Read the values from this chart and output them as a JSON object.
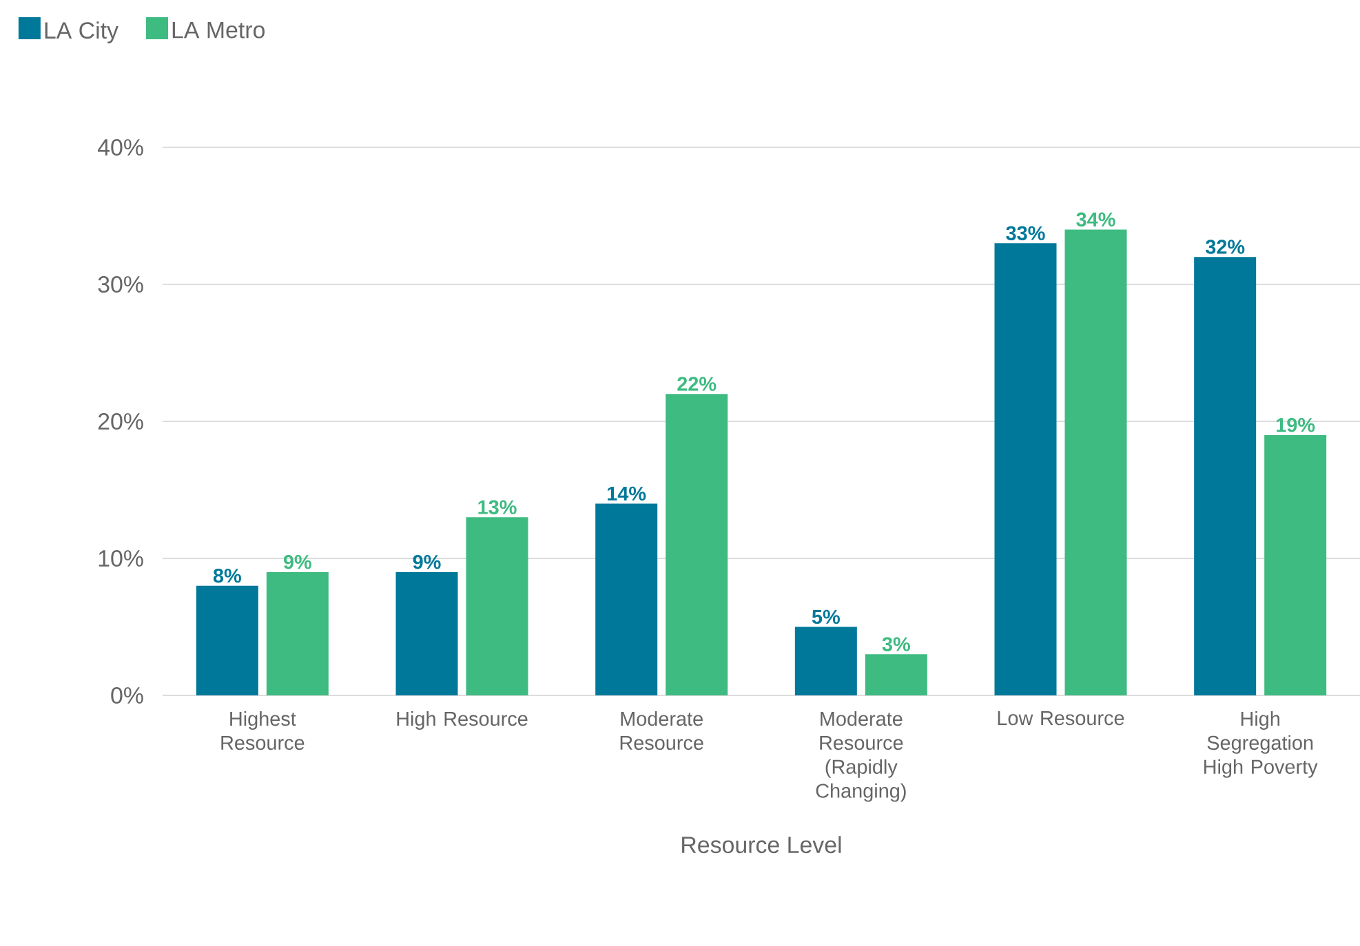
{
  "chart_data": {
    "type": "bar",
    "xlabel": "Resource Level",
    "categories": [
      "Highest Resource",
      "High Resource",
      "Moderate Resource",
      "Moderate Resource (Rapidly Changing)",
      "Low Resource",
      "High Segregation High Poverty"
    ],
    "series": [
      {
        "name": "LA City",
        "color": "#00789a",
        "values": [
          8,
          9,
          14,
          5,
          33,
          32
        ],
        "value_labels": [
          "8%",
          "9%",
          "14%",
          "5%",
          "33%",
          "32%"
        ]
      },
      {
        "name": "LA Metro",
        "color": "#3dbb81",
        "values": [
          9,
          13,
          22,
          3,
          34,
          19
        ],
        "value_labels": [
          "9%",
          "13%",
          "22%",
          "3%",
          "34%",
          "19%"
        ]
      }
    ],
    "ylim": [
      0,
      40
    ],
    "yticks": [
      {
        "value": 0,
        "label": "0%"
      },
      {
        "value": 10,
        "label": "10%"
      },
      {
        "value": 20,
        "label": "20%"
      },
      {
        "value": 30,
        "label": "30%"
      },
      {
        "value": 40,
        "label": "40%"
      }
    ],
    "grid": "y",
    "legend": "top left"
  }
}
